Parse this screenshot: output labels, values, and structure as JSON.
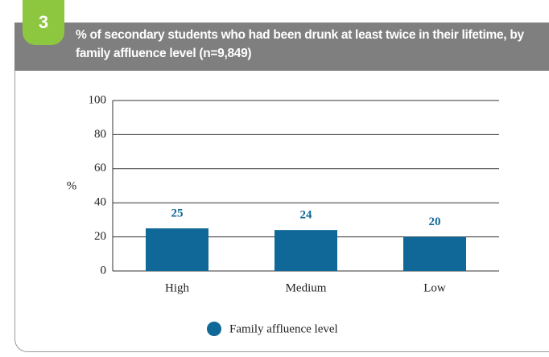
{
  "chart_data": {
    "type": "bar",
    "figure_number": "3",
    "title": "% of secondary students who had been drunk at least twice in their lifetime, by family affluence level (n=9,849)",
    "y_label": "%",
    "categories": [
      "High",
      "Medium",
      "Low"
    ],
    "series": [
      {
        "name": "Family affluence level",
        "color": "#0f6897",
        "values": [
          25,
          24,
          20
        ]
      }
    ],
    "ylim": [
      0,
      100
    ],
    "yticks": [
      0,
      20,
      40,
      60,
      80,
      100
    ],
    "grid": true,
    "legend": "bottom"
  }
}
